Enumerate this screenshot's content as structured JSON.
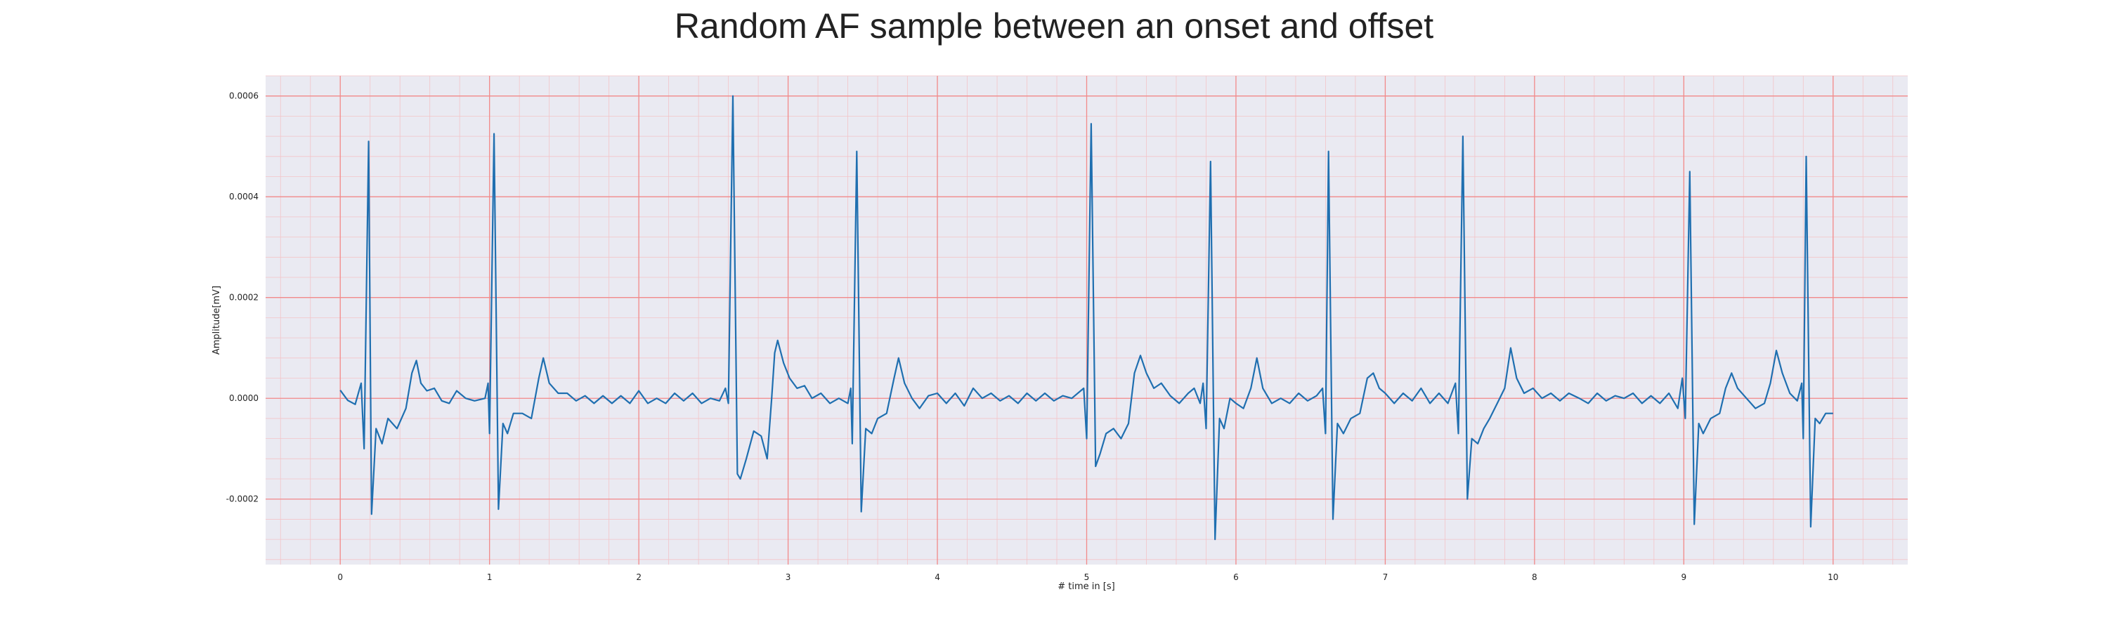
{
  "chart_data": {
    "type": "line",
    "title": "Random AF sample between an onset and offset",
    "xlabel": "# time in [s]",
    "ylabel": "Amplitude[mV]",
    "xlim": [
      -0.5,
      10.5
    ],
    "ylim": [
      -0.00033,
      0.00064
    ],
    "xticks": [
      0,
      1,
      2,
      3,
      4,
      5,
      6,
      7,
      8,
      9,
      10
    ],
    "xtick_labels": [
      "0",
      "1",
      "2",
      "3",
      "4",
      "5",
      "6",
      "7",
      "8",
      "9",
      "10"
    ],
    "yticks": [
      -0.0002,
      0.0,
      0.0002,
      0.0004,
      0.0006
    ],
    "ytick_labels": [
      "-0.0002",
      "0.0000",
      "0.0002",
      "0.0004",
      "0.0006"
    ],
    "x_minor_step": 0.2,
    "y_minor_step": 4e-05,
    "grid": true,
    "legend": "none",
    "colors": {
      "line": "#1f6fb0",
      "plot_background": "#eaeaf2",
      "major_grid": "#f28a8a",
      "minor_grid": "#f3c4c8",
      "frame": "#ffffff"
    },
    "series": [
      {
        "color": "#1f6fb0",
        "points": [
          [
            0.0,
            1.6e-05
          ],
          [
            0.05,
            -4e-06
          ],
          [
            0.1,
            -1.2e-05
          ],
          [
            0.14,
            3e-05
          ],
          [
            0.16,
            -0.0001
          ],
          [
            0.19,
            0.00051
          ],
          [
            0.21,
            -0.00023
          ],
          [
            0.24,
            -6e-05
          ],
          [
            0.28,
            -9e-05
          ],
          [
            0.32,
            -4e-05
          ],
          [
            0.38,
            -6e-05
          ],
          [
            0.44,
            -2e-05
          ],
          [
            0.48,
            5e-05
          ],
          [
            0.51,
            7.5e-05
          ],
          [
            0.54,
            3e-05
          ],
          [
            0.58,
            1.5e-05
          ],
          [
            0.63,
            2e-05
          ],
          [
            0.68,
            -5e-06
          ],
          [
            0.73,
            -1e-05
          ],
          [
            0.78,
            1.5e-05
          ],
          [
            0.84,
            0.0
          ],
          [
            0.9,
            -5e-06
          ],
          [
            0.97,
            0.0
          ],
          [
            0.99,
            3e-05
          ],
          [
            1.0,
            -7e-05
          ],
          [
            1.03,
            0.000525
          ],
          [
            1.06,
            -0.00022
          ],
          [
            1.09,
            -5e-05
          ],
          [
            1.12,
            -7e-05
          ],
          [
            1.16,
            -3e-05
          ],
          [
            1.22,
            -3e-05
          ],
          [
            1.28,
            -4e-05
          ],
          [
            1.33,
            4e-05
          ],
          [
            1.36,
            8e-05
          ],
          [
            1.4,
            3e-05
          ],
          [
            1.46,
            1e-05
          ],
          [
            1.52,
            1e-05
          ],
          [
            1.58,
            -5e-06
          ],
          [
            1.64,
            5e-06
          ],
          [
            1.7,
            -1e-05
          ],
          [
            1.76,
            5e-06
          ],
          [
            1.82,
            -1e-05
          ],
          [
            1.88,
            5e-06
          ],
          [
            1.94,
            -1e-05
          ],
          [
            2.0,
            1.5e-05
          ],
          [
            2.06,
            -1e-05
          ],
          [
            2.12,
            0.0
          ],
          [
            2.18,
            -1e-05
          ],
          [
            2.24,
            1e-05
          ],
          [
            2.3,
            -5e-06
          ],
          [
            2.36,
            1e-05
          ],
          [
            2.42,
            -1e-05
          ],
          [
            2.48,
            0.0
          ],
          [
            2.54,
            -5e-06
          ],
          [
            2.58,
            2e-05
          ],
          [
            2.6,
            -1e-05
          ],
          [
            2.63,
            0.0006
          ],
          [
            2.66,
            -0.00015
          ],
          [
            2.68,
            -0.00016
          ],
          [
            2.72,
            -0.00012
          ],
          [
            2.77,
            -6.5e-05
          ],
          [
            2.82,
            -7.5e-05
          ],
          [
            2.86,
            -0.00012
          ],
          [
            2.89,
            0.0
          ],
          [
            2.91,
            9e-05
          ],
          [
            2.93,
            0.000115
          ],
          [
            2.97,
            7e-05
          ],
          [
            3.01,
            4e-05
          ],
          [
            3.06,
            2e-05
          ],
          [
            3.11,
            2.5e-05
          ],
          [
            3.16,
            0.0
          ],
          [
            3.22,
            1e-05
          ],
          [
            3.28,
            -1e-05
          ],
          [
            3.34,
            0.0
          ],
          [
            3.4,
            -1e-05
          ],
          [
            3.42,
            2e-05
          ],
          [
            3.43,
            -9e-05
          ],
          [
            3.46,
            0.00049
          ],
          [
            3.49,
            -0.000225
          ],
          [
            3.52,
            -6e-05
          ],
          [
            3.56,
            -7e-05
          ],
          [
            3.6,
            -4e-05
          ],
          [
            3.66,
            -3e-05
          ],
          [
            3.71,
            4e-05
          ],
          [
            3.74,
            8e-05
          ],
          [
            3.78,
            3e-05
          ],
          [
            3.83,
            0.0
          ],
          [
            3.88,
            -2e-05
          ],
          [
            3.94,
            5e-06
          ],
          [
            4.0,
            1e-05
          ],
          [
            4.06,
            -1e-05
          ],
          [
            4.12,
            1e-05
          ],
          [
            4.18,
            -1.5e-05
          ],
          [
            4.24,
            2e-05
          ],
          [
            4.3,
            0.0
          ],
          [
            4.36,
            1e-05
          ],
          [
            4.42,
            -5e-06
          ],
          [
            4.48,
            5e-06
          ],
          [
            4.54,
            -1e-05
          ],
          [
            4.6,
            1e-05
          ],
          [
            4.66,
            -5e-06
          ],
          [
            4.72,
            1e-05
          ],
          [
            4.78,
            -5e-06
          ],
          [
            4.84,
            5e-06
          ],
          [
            4.9,
            0.0
          ],
          [
            4.98,
            2e-05
          ],
          [
            5.0,
            -8e-05
          ],
          [
            5.03,
            0.000545
          ],
          [
            5.06,
            -0.000135
          ],
          [
            5.09,
            -0.00011
          ],
          [
            5.13,
            -7e-05
          ],
          [
            5.18,
            -6e-05
          ],
          [
            5.23,
            -8e-05
          ],
          [
            5.28,
            -5e-05
          ],
          [
            5.32,
            5e-05
          ],
          [
            5.36,
            8.5e-05
          ],
          [
            5.4,
            5e-05
          ],
          [
            5.45,
            2e-05
          ],
          [
            5.5,
            3e-05
          ],
          [
            5.56,
            5e-06
          ],
          [
            5.62,
            -1e-05
          ],
          [
            5.68,
            1e-05
          ],
          [
            5.72,
            2e-05
          ],
          [
            5.76,
            -1e-05
          ],
          [
            5.78,
            3e-05
          ],
          [
            5.8,
            -6e-05
          ],
          [
            5.83,
            0.00047
          ],
          [
            5.86,
            -0.00028
          ],
          [
            5.89,
            -4e-05
          ],
          [
            5.92,
            -6e-05
          ],
          [
            5.96,
            0.0
          ],
          [
            6.0,
            -1e-05
          ],
          [
            6.05,
            -2e-05
          ],
          [
            6.1,
            2e-05
          ],
          [
            6.14,
            8e-05
          ],
          [
            6.18,
            2e-05
          ],
          [
            6.24,
            -1e-05
          ],
          [
            6.3,
            0.0
          ],
          [
            6.36,
            -1e-05
          ],
          [
            6.42,
            1e-05
          ],
          [
            6.48,
            -5e-06
          ],
          [
            6.54,
            5e-06
          ],
          [
            6.58,
            2e-05
          ],
          [
            6.6,
            -7e-05
          ],
          [
            6.62,
            0.00049
          ],
          [
            6.65,
            -0.00024
          ],
          [
            6.68,
            -5e-05
          ],
          [
            6.72,
            -7e-05
          ],
          [
            6.77,
            -4e-05
          ],
          [
            6.83,
            -3e-05
          ],
          [
            6.88,
            4e-05
          ],
          [
            6.92,
            5e-05
          ],
          [
            6.96,
            2e-05
          ],
          [
            7.0,
            1e-05
          ],
          [
            7.06,
            -1e-05
          ],
          [
            7.12,
            1e-05
          ],
          [
            7.18,
            -5e-06
          ],
          [
            7.24,
            2e-05
          ],
          [
            7.3,
            -1e-05
          ],
          [
            7.36,
            1e-05
          ],
          [
            7.42,
            -1e-05
          ],
          [
            7.47,
            3e-05
          ],
          [
            7.49,
            -7e-05
          ],
          [
            7.52,
            0.00052
          ],
          [
            7.55,
            -0.0002
          ],
          [
            7.58,
            -8e-05
          ],
          [
            7.62,
            -9e-05
          ],
          [
            7.66,
            -6e-05
          ],
          [
            7.7,
            -4e-05
          ],
          [
            7.75,
            -1e-05
          ],
          [
            7.8,
            2e-05
          ],
          [
            7.84,
            0.0001
          ],
          [
            7.88,
            4e-05
          ],
          [
            7.93,
            1e-05
          ],
          [
            7.99,
            2e-05
          ],
          [
            8.05,
            0.0
          ],
          [
            8.11,
            1e-05
          ],
          [
            8.17,
            -5e-06
          ],
          [
            8.23,
            1e-05
          ],
          [
            8.3,
            0.0
          ],
          [
            8.36,
            -1e-05
          ],
          [
            8.42,
            1e-05
          ],
          [
            8.48,
            -5e-06
          ],
          [
            8.54,
            5e-06
          ],
          [
            8.6,
            0.0
          ],
          [
            8.66,
            1e-05
          ],
          [
            8.72,
            -1e-05
          ],
          [
            8.78,
            5e-06
          ],
          [
            8.84,
            -1e-05
          ],
          [
            8.9,
            1e-05
          ],
          [
            8.96,
            -2e-05
          ],
          [
            8.99,
            4e-05
          ],
          [
            9.01,
            -4e-05
          ],
          [
            9.04,
            0.00045
          ],
          [
            9.07,
            -0.00025
          ],
          [
            9.1,
            -5e-05
          ],
          [
            9.13,
            -7e-05
          ],
          [
            9.18,
            -4e-05
          ],
          [
            9.24,
            -3e-05
          ],
          [
            9.28,
            2e-05
          ],
          [
            9.32,
            5e-05
          ],
          [
            9.36,
            2e-05
          ],
          [
            9.42,
            0.0
          ],
          [
            9.48,
            -2e-05
          ],
          [
            9.54,
            -1e-05
          ],
          [
            9.58,
            3e-05
          ],
          [
            9.62,
            9.5e-05
          ],
          [
            9.66,
            5e-05
          ],
          [
            9.71,
            1e-05
          ],
          [
            9.76,
            -5e-06
          ],
          [
            9.79,
            3e-05
          ],
          [
            9.8,
            -8e-05
          ],
          [
            9.82,
            0.00048
          ],
          [
            9.85,
            -0.000255
          ],
          [
            9.88,
            -4e-05
          ],
          [
            9.91,
            -5e-05
          ],
          [
            9.95,
            -3e-05
          ],
          [
            10.0,
            -3e-05
          ]
        ]
      }
    ]
  }
}
